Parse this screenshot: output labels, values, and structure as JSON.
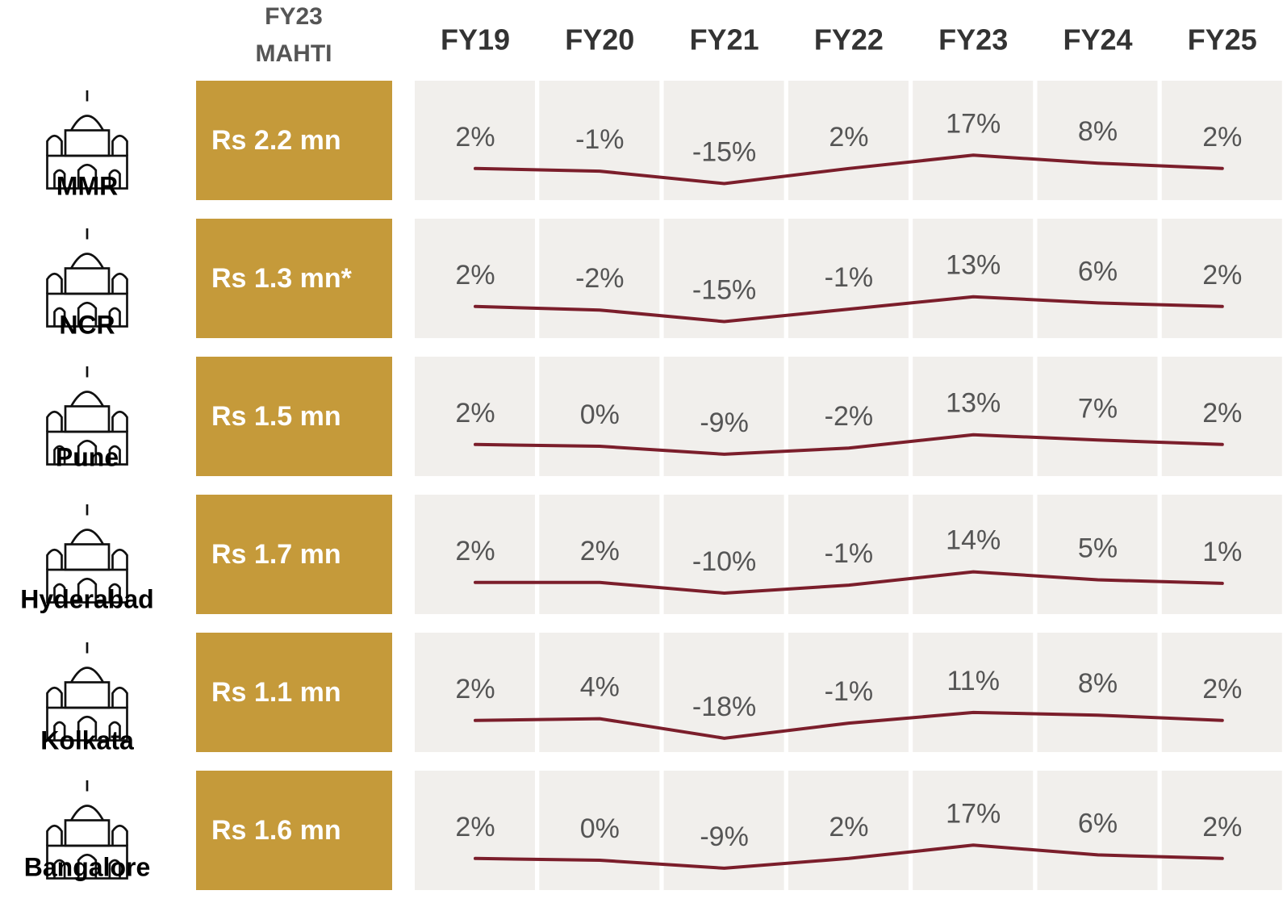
{
  "header": {
    "label": [
      "FY23",
      "MAHTI"
    ]
  },
  "categories": [
    "FY19",
    "FY20",
    "FY21",
    "FY22",
    "FY23",
    "FY24",
    "FY25"
  ],
  "color": "#7b1e2b",
  "rows": [
    {
      "city": "MMR",
      "mahti": "Rs 2.2 mn",
      "values": [
        2,
        -1,
        -15,
        2,
        17,
        8,
        2
      ],
      "value_labels": [
        "2%",
        "-1%",
        "-15%",
        "2%",
        "17%",
        "8%",
        "2%"
      ]
    },
    {
      "city": "NCR",
      "mahti": "Rs 1.3 mn*",
      "values": [
        2,
        -2,
        -15,
        -1,
        13,
        6,
        2
      ],
      "value_labels": [
        "2%",
        "-2%",
        "-15%",
        "-1%",
        "13%",
        "6%",
        "2%"
      ]
    },
    {
      "city": "Pune",
      "mahti": "Rs 1.5 mn",
      "values": [
        2,
        0,
        -9,
        -2,
        13,
        7,
        2
      ],
      "value_labels": [
        "2%",
        "0%",
        "-9%",
        "-2%",
        "13%",
        "7%",
        "2%"
      ]
    },
    {
      "city": "Hyderabad",
      "mahti": "Rs 1.7 mn",
      "values": [
        2,
        2,
        -10,
        -1,
        14,
        5,
        1
      ],
      "value_labels": [
        "2%",
        "2%",
        "-10%",
        "-1%",
        "14%",
        "5%",
        "1%"
      ]
    },
    {
      "city": "Kolkata",
      "mahti": "Rs 1.1 mn",
      "values": [
        2,
        4,
        -18,
        -1,
        11,
        8,
        2
      ],
      "value_labels": [
        "2%",
        "4%",
        "-18%",
        "-1%",
        "11%",
        "8%",
        "2%"
      ]
    },
    {
      "city": "Bangalore",
      "mahti": "Rs 1.6 mn",
      "values": [
        2,
        0,
        -9,
        2,
        17,
        6,
        2
      ],
      "value_labels": [
        "2%",
        "0%",
        "-9%",
        "2%",
        "17%",
        "6%",
        "2%"
      ]
    }
  ]
}
